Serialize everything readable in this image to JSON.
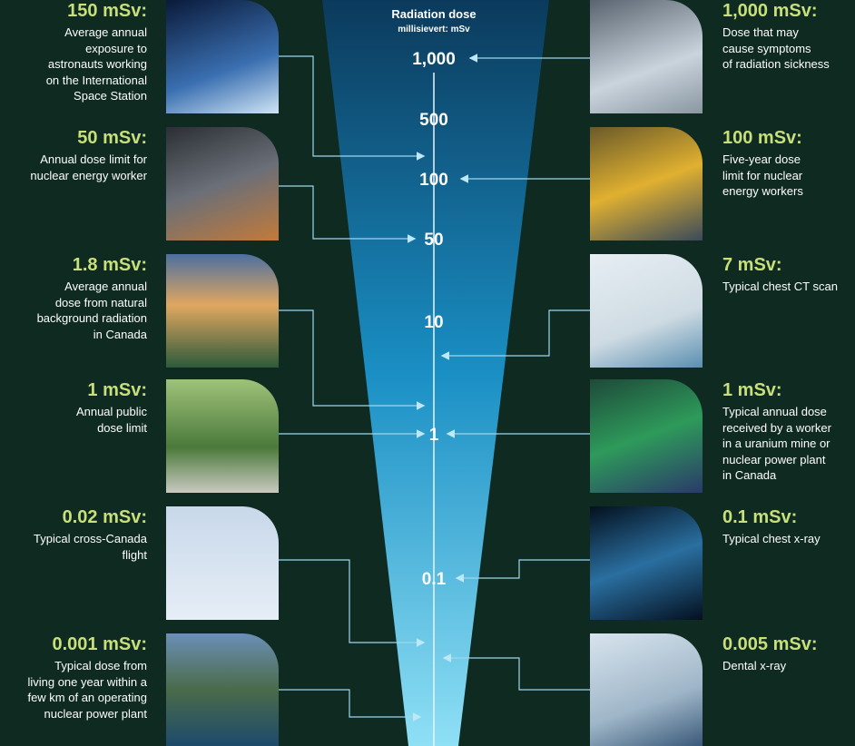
{
  "header": {
    "title": "Radiation dose",
    "subtitle": "millisievert: mSv"
  },
  "scale": [
    "1,000",
    "500",
    "100",
    "50",
    "10",
    "1",
    "0.1"
  ],
  "left": [
    {
      "dose": "150 mSv:",
      "lines": [
        "Average annual",
        "exposure to",
        "astronauts working",
        "on the International",
        "Space Station"
      ]
    },
    {
      "dose": "50 mSv:",
      "lines": [
        "Annual dose limit for",
        "nuclear energy worker"
      ]
    },
    {
      "dose": "1.8 mSv:",
      "lines": [
        "Average annual",
        "dose from natural",
        "background radiation",
        "in Canada"
      ]
    },
    {
      "dose": "1 mSv:",
      "lines": [
        "Annual public",
        "dose limit"
      ]
    },
    {
      "dose": "0.02 mSv:",
      "lines": [
        "Typical cross-Canada",
        "flight"
      ]
    },
    {
      "dose": "0.001 mSv:",
      "lines": [
        "Typical dose from",
        "living one year within a",
        "few km of an operating",
        "nuclear power plant"
      ]
    }
  ],
  "right": [
    {
      "dose": "1,000 mSv:",
      "lines": [
        "Dose that may",
        "cause symptoms",
        "of radiation sickness"
      ]
    },
    {
      "dose": "100 mSv:",
      "lines": [
        "Five-year dose",
        "limit for nuclear",
        "energy workers"
      ]
    },
    {
      "dose": "7 mSv:",
      "lines": [
        "Typical chest CT scan"
      ]
    },
    {
      "dose": "1 mSv:",
      "lines": [
        "Typical annual dose",
        "received by a worker",
        "in a uranium mine or",
        "nuclear power plant",
        "in Canada"
      ]
    },
    {
      "dose": "0.1 mSv:",
      "lines": [
        "Typical chest x-ray"
      ]
    },
    {
      "dose": "0.005 mSv:",
      "lines": [
        "Dental x-ray"
      ]
    }
  ]
}
